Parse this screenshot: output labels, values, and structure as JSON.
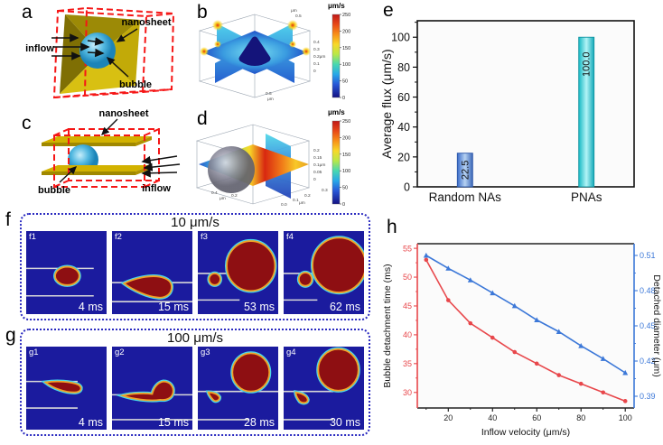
{
  "panel_letters": {
    "a": "a",
    "b": "b",
    "c": "c",
    "d": "d",
    "e": "e",
    "f": "f",
    "g": "g",
    "h": "h"
  },
  "schematic_a": {
    "label_nanosheet": "nanosheet",
    "label_inflow": "inflow",
    "label_bubble": "bubble"
  },
  "schematic_c": {
    "label_nanosheet": "nanosheet",
    "label_inflow": "inflow",
    "label_bubble": "bubble"
  },
  "sim3d_b": {
    "colorbar_title": "μm/s",
    "colorbar_ticks": [
      "250",
      "200",
      "150",
      "100",
      "50",
      "0"
    ],
    "z_ticks": [
      "0.4",
      "0.3",
      "0.2μm",
      "0.1",
      "0"
    ],
    "x_tick": "0.5",
    "x_unit": "μm",
    "y_unit": "μm",
    "y_tick": "0.5"
  },
  "sim3d_d": {
    "colorbar_title": "μm/s",
    "colorbar_ticks": [
      "250",
      "200",
      "150",
      "100",
      "50",
      "0"
    ],
    "z_ticks": [
      "0.2",
      "0.15",
      "0.1μm",
      "0.05",
      "0"
    ],
    "x_ticks": [
      "0.4",
      "0.2"
    ],
    "x_unit": "μm",
    "y_ticks": [
      "0.0",
      "0.1",
      "0.2",
      "0.3"
    ],
    "y_unit": "μm"
  },
  "sim_rows": [
    {
      "id": "f",
      "title": "10 μm/s",
      "frames": [
        {
          "label": "f1",
          "time": "4 ms"
        },
        {
          "label": "f2",
          "time": "15 ms"
        },
        {
          "label": "f3",
          "time": "53 ms"
        },
        {
          "label": "f4",
          "time": "62 ms"
        }
      ]
    },
    {
      "id": "g",
      "title": "100 μm/s",
      "frames": [
        {
          "label": "g1",
          "time": "4 ms"
        },
        {
          "label": "g2",
          "time": "15 ms"
        },
        {
          "label": "g3",
          "time": "28 ms"
        },
        {
          "label": "g4",
          "time": "30 ms"
        }
      ]
    }
  ],
  "chart_data": [
    {
      "id": "e",
      "type": "bar",
      "categories": [
        "Random NAs",
        "PNAs"
      ],
      "values": [
        22.5,
        100.0
      ],
      "value_labels": [
        "22.5",
        "100.0"
      ],
      "ylabel": "Average flux (μm/s)",
      "yticks": [
        0,
        20,
        40,
        60,
        80,
        100
      ],
      "ylim": [
        0,
        111
      ],
      "grid": false
    },
    {
      "id": "h",
      "type": "line",
      "x": [
        10,
        20,
        30,
        40,
        50,
        60,
        70,
        80,
        90,
        100
      ],
      "series": [
        {
          "name": "Bubble detachment time (ms)",
          "axis": "left",
          "marker": "circle",
          "values": [
            53,
            46,
            42,
            39.5,
            37,
            35,
            33,
            31.5,
            30,
            28.5
          ]
        },
        {
          "name": "Detached diameter (μm)",
          "axis": "right",
          "marker": "triangle",
          "values": [
            0.51,
            0.499,
            0.489,
            0.478,
            0.467,
            0.455,
            0.445,
            0.433,
            0.422,
            0.41
          ]
        }
      ],
      "xlabel": "Inflow velocity (μm/s)",
      "ylabel_left": "Bubble detachment time (ms)",
      "ylabel_right": "Detached diameter (μm)",
      "xticks": [
        20,
        40,
        60,
        80,
        100
      ],
      "yticks_left": [
        30,
        35,
        40,
        45,
        50,
        55
      ],
      "yticks_right": [
        0.39,
        0.42,
        0.45,
        0.48,
        0.51
      ],
      "xlim": [
        6,
        104
      ],
      "ylim_left": [
        27.3,
        55.8
      ],
      "ylim_right": [
        0.38,
        0.52
      ],
      "grid": false,
      "legend": "none"
    }
  ],
  "colors": {
    "accent_red": "#f51616",
    "nanosheet_yellow": "#d2b200",
    "bubble_blue": "#3fb3dc",
    "sim_bg": "#1b1b9e",
    "bubble_red": "#8e0f12",
    "rim_cyan": "#46d8ec",
    "rim_orange": "#f0a229",
    "channel_line": "#d8d8d8",
    "box_border": "#2b2bc0",
    "line_red": "#e8474b",
    "line_blue": "#3c78d8",
    "bar_gradients": [
      [
        "#3a6cc8",
        "#b6d2f2",
        "#3a66b8"
      ],
      [
        "#16b8c4",
        "#b2f4f6",
        "#12a8b8"
      ]
    ],
    "bar_strokes": [
      "#2a55a8",
      "#0f93a0"
    ]
  }
}
